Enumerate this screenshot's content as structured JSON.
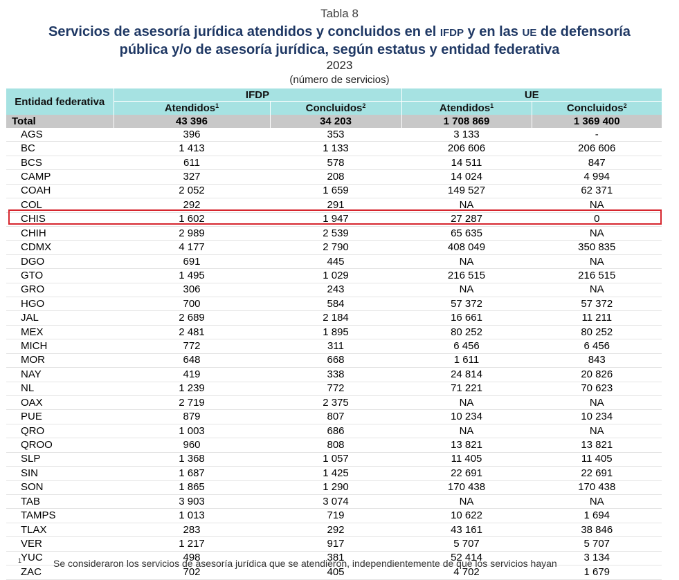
{
  "header": {
    "label": "Tabla 8",
    "title_part1": "Servicios de asesoría jurídica atendidos y concluidos en el ",
    "title_abbr1": "IFDP",
    "title_part2": " y en las ",
    "title_abbr2": "UE",
    "title_part3": " de defensoría",
    "title_line2": "pública y/o de asesoría jurídica, según estatus y entidad federativa",
    "year": "2023",
    "units": "(número de servicios)"
  },
  "table": {
    "entity_header": "Entidad federativa",
    "group1": "IFDP",
    "group2": "UE",
    "col_atendidos": "Atendidos",
    "col_concluidos": "Concluidos",
    "sup1": "1",
    "sup2": "2",
    "total": [
      "Total",
      "43 396",
      "34 203",
      "1 708 869",
      "1 369 400"
    ],
    "rows": [
      [
        "AGS",
        "396",
        "353",
        "3 133",
        "-"
      ],
      [
        "BC",
        "1 413",
        "1 133",
        "206 606",
        "206 606"
      ],
      [
        "BCS",
        "611",
        "578",
        "14 511",
        "847"
      ],
      [
        "CAMP",
        "327",
        "208",
        "14 024",
        "4 994"
      ],
      [
        "COAH",
        "2 052",
        "1 659",
        "149 527",
        "62 371"
      ],
      [
        "COL",
        "292",
        "291",
        "NA",
        "NA"
      ],
      [
        "CHIS",
        "1 602",
        "1 947",
        "27 287",
        "0"
      ],
      [
        "CHIH",
        "2 989",
        "2 539",
        "65 635",
        "NA"
      ],
      [
        "CDMX",
        "4 177",
        "2 790",
        "408 049",
        "350 835"
      ],
      [
        "DGO",
        "691",
        "445",
        "NA",
        "NA"
      ],
      [
        "GTO",
        "1 495",
        "1 029",
        "216 515",
        "216 515"
      ],
      [
        "GRO",
        "306",
        "243",
        "NA",
        "NA"
      ],
      [
        "HGO",
        "700",
        "584",
        "57 372",
        "57 372"
      ],
      [
        "JAL",
        "2 689",
        "2 184",
        "16 661",
        "11 211"
      ],
      [
        "MEX",
        "2 481",
        "1 895",
        "80 252",
        "80 252"
      ],
      [
        "MICH",
        "772",
        "311",
        "6 456",
        "6 456"
      ],
      [
        "MOR",
        "648",
        "668",
        "1 611",
        "843"
      ],
      [
        "NAY",
        "419",
        "338",
        "24 814",
        "20 826"
      ],
      [
        "NL",
        "1 239",
        "772",
        "71 221",
        "70 623"
      ],
      [
        "OAX",
        "2 719",
        "2 375",
        "NA",
        "NA"
      ],
      [
        "PUE",
        "879",
        "807",
        "10 234",
        "10 234"
      ],
      [
        "QRO",
        "1 003",
        "686",
        "NA",
        "NA"
      ],
      [
        "QROO",
        "960",
        "808",
        "13 821",
        "13 821"
      ],
      [
        "SLP",
        "1 368",
        "1 057",
        "11 405",
        "11 405"
      ],
      [
        "SIN",
        "1 687",
        "1 425",
        "22 691",
        "22 691"
      ],
      [
        "SON",
        "1 865",
        "1 290",
        "170 438",
        "170 438"
      ],
      [
        "TAB",
        "3 903",
        "3 074",
        "NA",
        "NA"
      ],
      [
        "TAMPS",
        "1 013",
        "719",
        "10 622",
        "1 694"
      ],
      [
        "TLAX",
        "283",
        "292",
        "43 161",
        "38 846"
      ],
      [
        "VER",
        "1 217",
        "917",
        "5 707",
        "5 707"
      ],
      [
        "YUC",
        "498",
        "381",
        "52 414",
        "3 134"
      ],
      [
        "ZAC",
        "702",
        "405",
        "4 702",
        "1 679"
      ]
    ]
  },
  "footnote": {
    "number": "1",
    "text": "Se consideraron los servicios de asesoría jurídica que se atendieron, independientemente de que los servicios hayan"
  },
  "colors": {
    "header_bg": "#a6e2e2",
    "total_bg": "#c8c8c8",
    "title_color": "#1f3864",
    "highlight_border": "#d6262e"
  }
}
